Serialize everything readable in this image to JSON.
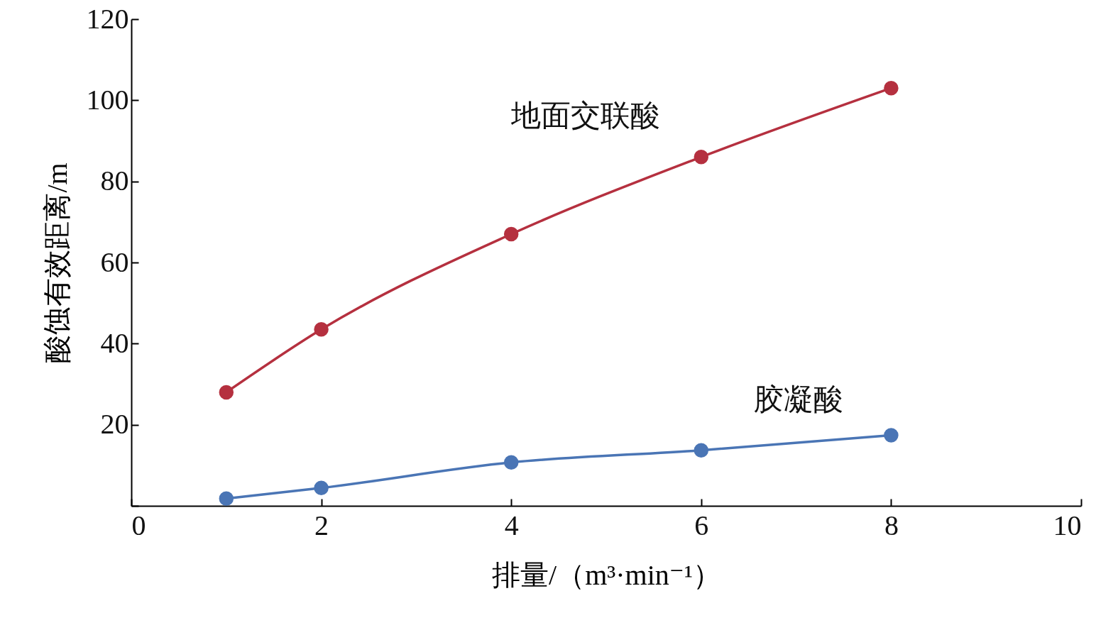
{
  "chart_data": {
    "type": "line",
    "xlabel": "排量/（m³·min⁻¹）",
    "ylabel": "酸蚀有效距离/m",
    "x": [
      1,
      2,
      4,
      6,
      8
    ],
    "series": [
      {
        "name": "地面交联酸",
        "color": "#b5303f",
        "values": [
          28,
          43.5,
          67,
          86,
          103
        ]
      },
      {
        "name": "胶凝酸",
        "color": "#4a75b5",
        "values": [
          1.8,
          4.4,
          10.7,
          13.7,
          17.4
        ]
      }
    ],
    "xlim": [
      0,
      10
    ],
    "xticks": [
      0,
      2,
      4,
      6,
      8,
      10
    ],
    "ylim": [
      0,
      120
    ],
    "yticks": [
      {
        "value": 0,
        "label": null
      },
      20,
      40,
      60,
      80,
      100,
      120
    ],
    "grid": false,
    "legend": false,
    "marker": "circle",
    "line_style": "solid"
  }
}
